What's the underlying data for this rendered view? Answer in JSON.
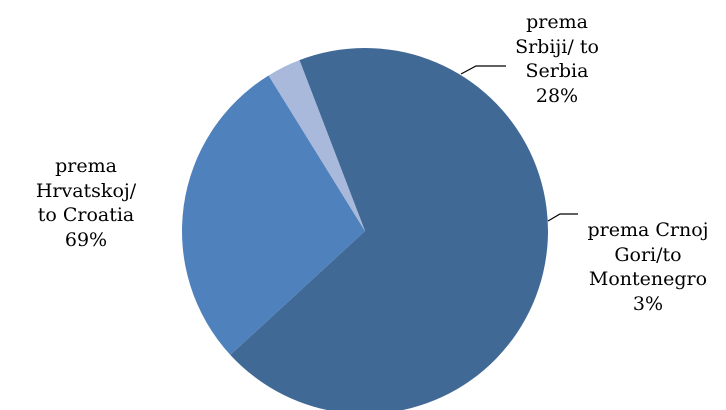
{
  "chart_data": {
    "type": "pie",
    "slices": [
      {
        "key": "croatia",
        "lines": [
          "prema",
          "Hrvatskoj/",
          "to Croatia"
        ],
        "value": 69,
        "percent_label": "69%",
        "color": "#416996"
      },
      {
        "key": "serbia",
        "lines": [
          "prema",
          "Srbiji/ to",
          "Serbia"
        ],
        "value": 28,
        "percent_label": "28%",
        "color": "#4f81bd"
      },
      {
        "key": "montenegro",
        "lines": [
          "prema Crnoj",
          "Gori/to",
          "Montenegro"
        ],
        "value": 3,
        "percent_label": "3%",
        "color": "#a8b9dc"
      }
    ],
    "legend": "none",
    "data_labels": "outside with leader lines"
  }
}
